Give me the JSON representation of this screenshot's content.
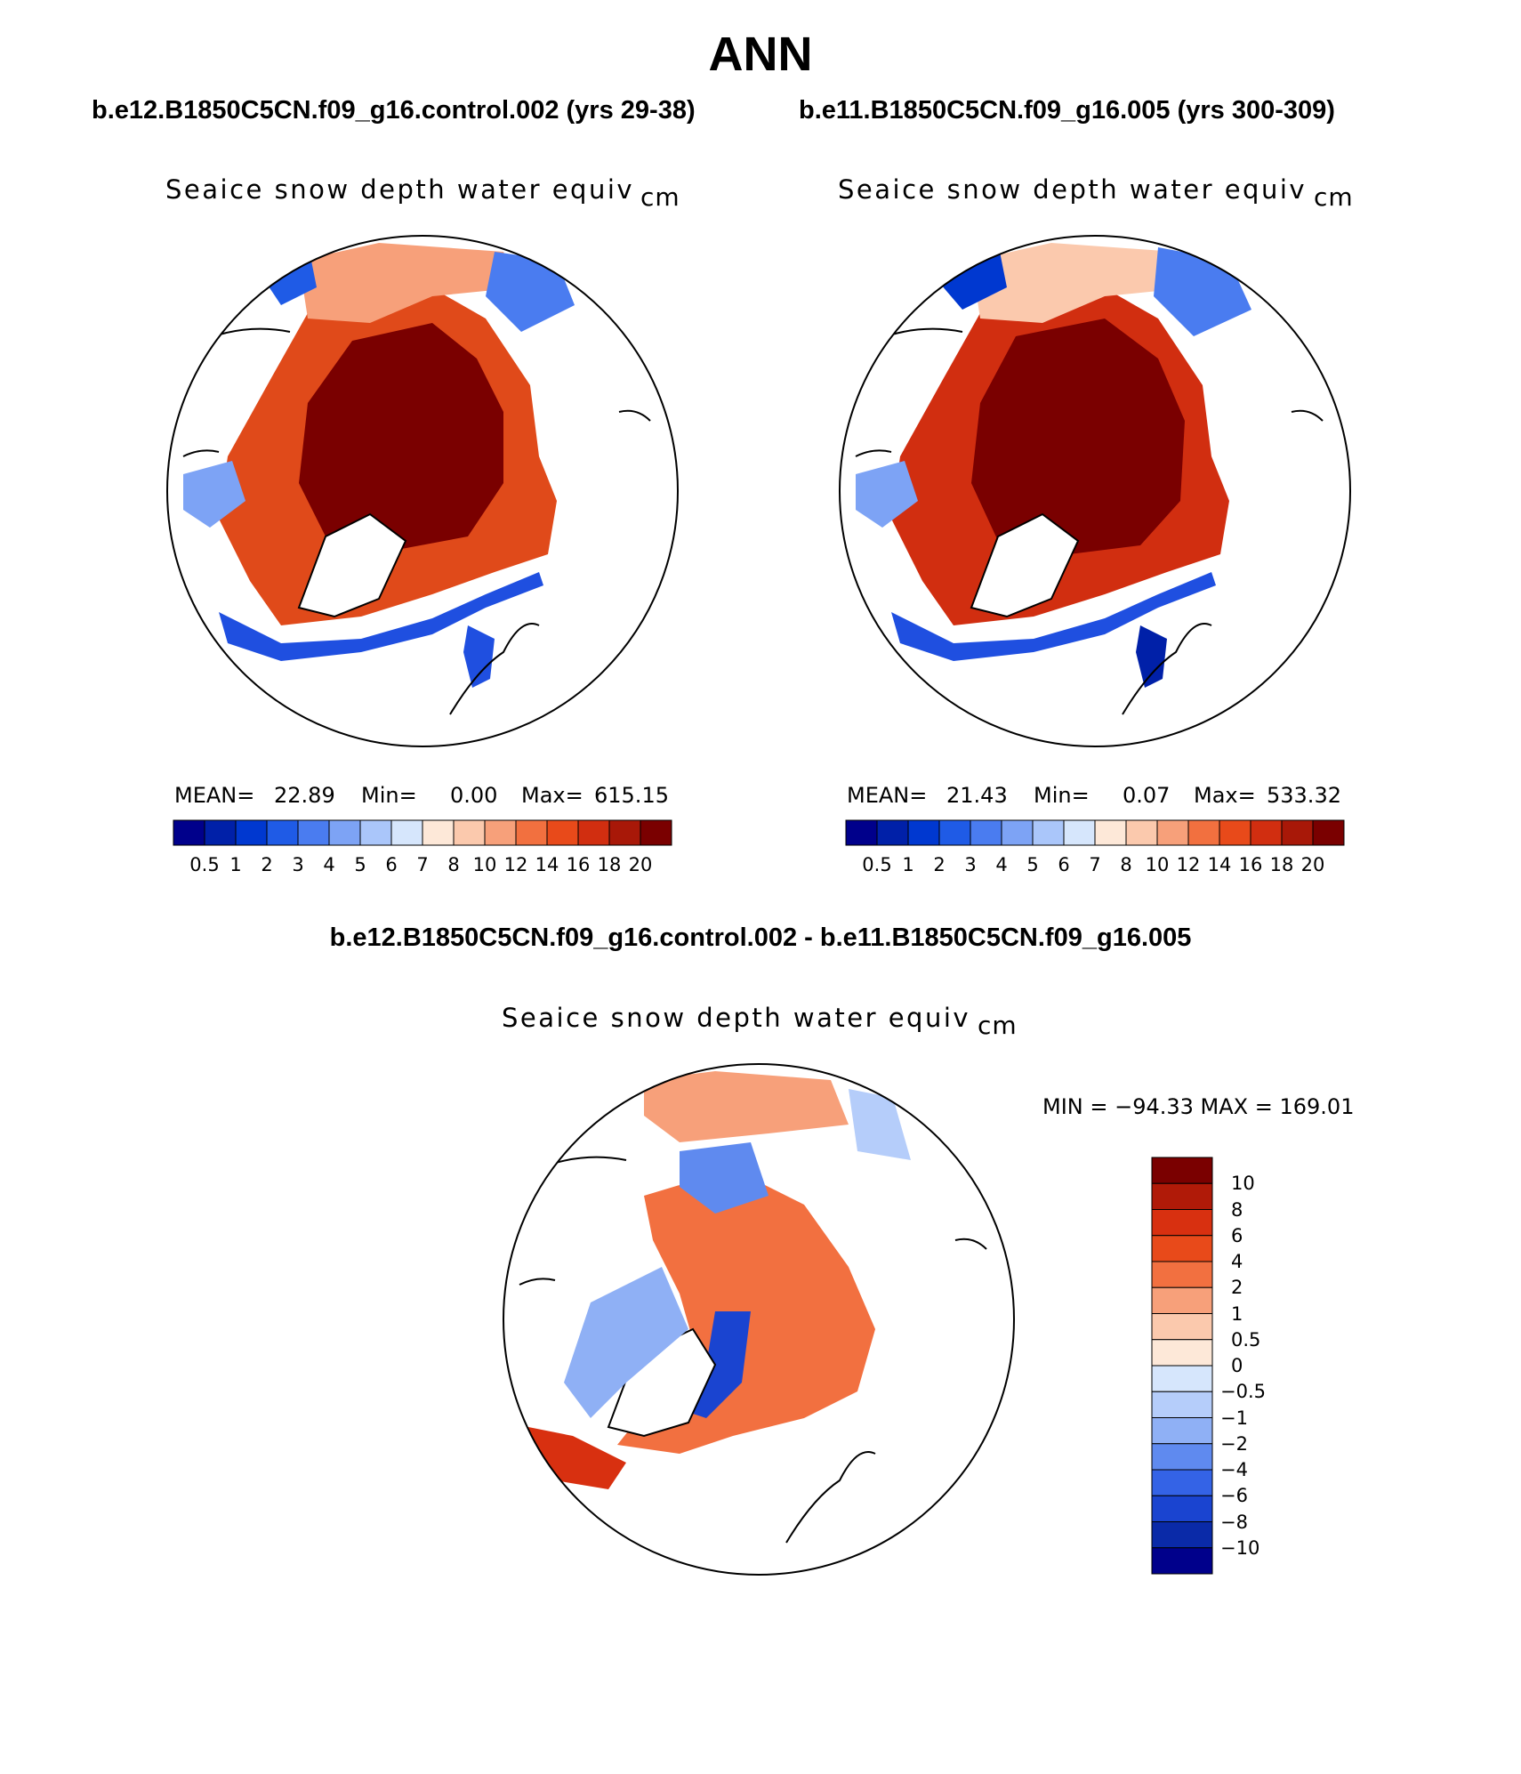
{
  "title": "ANN",
  "panels": [
    {
      "id": "left",
      "case_title": "b.e12.B1850C5CN.f09_g16.control.002 (yrs 29-38)",
      "field": "Seaice snow depth water equiv",
      "units": "cm",
      "mean_label": "MEAN=",
      "mean": "22.89",
      "min_label": "Min=",
      "min": "0.00",
      "max_label": "Max=",
      "max": "615.15"
    },
    {
      "id": "right",
      "case_title": "b.e11.B1850C5CN.f09_g16.005 (yrs 300-309)",
      "field": "Seaice snow depth water equiv",
      "units": "cm",
      "mean_label": "MEAN=",
      "mean": "21.43",
      "min_label": "Min=",
      "min": "0.07",
      "max_label": "Max=",
      "max": "533.32"
    }
  ],
  "abs_colorbar": {
    "labels": [
      "0.5",
      "1",
      "2",
      "3",
      "4",
      "5",
      "6",
      "7",
      "8",
      "10",
      "12",
      "14",
      "16",
      "18",
      "20"
    ],
    "colors": [
      "#00008b",
      "#0020a8",
      "#0038d0",
      "#1f5be6",
      "#4a7cf0",
      "#7da3f5",
      "#aac6fa",
      "#d6e6fc",
      "#fde8d8",
      "#fbc9ad",
      "#f7a07a",
      "#f2703f",
      "#e84a1a",
      "#d12e10",
      "#a81808",
      "#7a0000"
    ]
  },
  "diff": {
    "title": "b.e12.B1850C5CN.f09_g16.control.002 - b.e11.B1850C5CN.f09_g16.005",
    "field": "Seaice snow depth water equiv",
    "units": "cm",
    "minmax": "MIN = −94.33 MAX = 169.01",
    "colorbar_labels": [
      "10",
      "8",
      "6",
      "4",
      "2",
      "1",
      "0.5",
      "0",
      "−0.5",
      "−1",
      "−2",
      "−4",
      "−6",
      "−8",
      "−10"
    ],
    "colorbar_colors": [
      "#7a0000",
      "#b01a08",
      "#d83010",
      "#e84a1a",
      "#f27040",
      "#f7a07a",
      "#fbc9ad",
      "#fde8d8",
      "#d6e6fc",
      "#b5cdfa",
      "#8fb0f5",
      "#5f8aef",
      "#3463e6",
      "#1a44d0",
      "#0a2aa8",
      "#00008b"
    ]
  }
}
